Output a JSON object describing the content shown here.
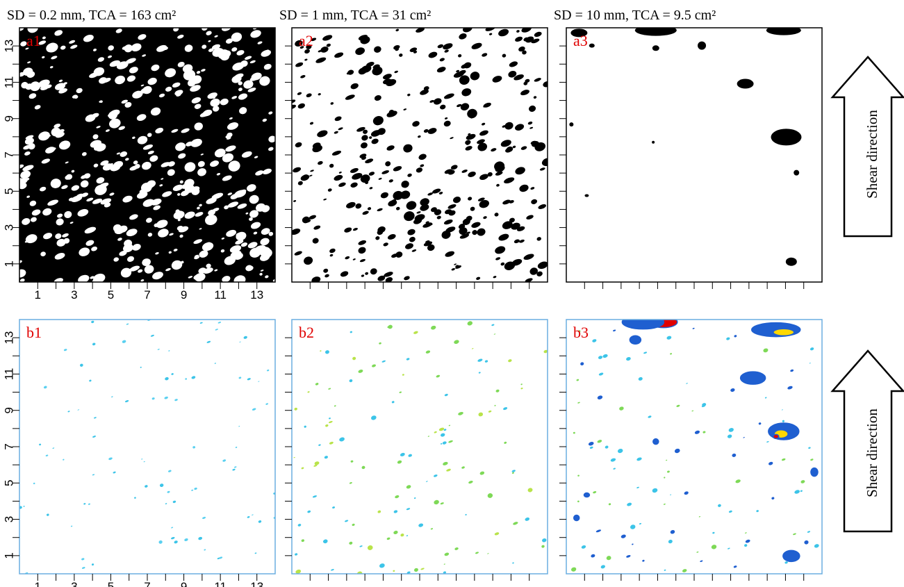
{
  "titles": [
    "SD = 0.2 mm, TCA = 163 cm²",
    "SD = 1 mm, TCA = 31 cm²",
    "SD = 10 mm, TCA = 9.5 cm²"
  ],
  "panels": {
    "a": [
      "a1",
      "a2",
      "a3"
    ],
    "b": [
      "b1",
      "b2",
      "b3"
    ]
  },
  "ticks": [
    "1",
    "3",
    "5",
    "7",
    "9",
    "11",
    "13"
  ],
  "arrows": [
    "Shear direction",
    "Shear direction"
  ]
}
